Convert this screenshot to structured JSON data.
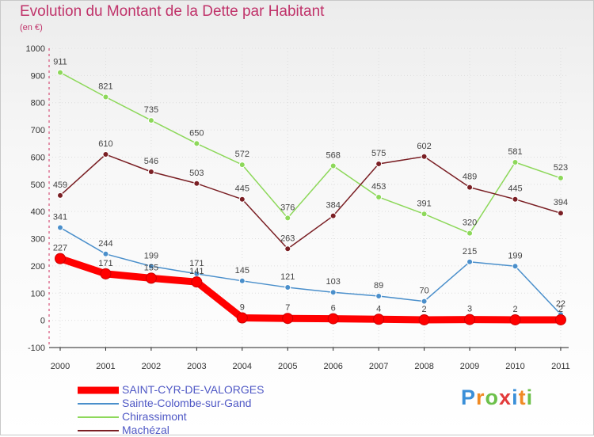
{
  "title": "Evolution du Montant de la Dette par Habitant",
  "subtitle": "(en €)",
  "brand": {
    "text": "Proxiti",
    "letters": [
      {
        "ch": "P",
        "color": "#3a8fd8"
      },
      {
        "ch": "r",
        "color": "#f08a24"
      },
      {
        "ch": "o",
        "color": "#6cc04a"
      },
      {
        "ch": "x",
        "color": "#e23b3b"
      },
      {
        "ch": "i",
        "color": "#3a8fd8"
      },
      {
        "ch": "t",
        "color": "#f08a24"
      },
      {
        "ch": "i",
        "color": "#6cc04a"
      }
    ]
  },
  "chart_data": {
    "type": "line",
    "title": "Evolution du Montant de la Dette par Habitant",
    "ylabel": "(en €)",
    "xlabel": "",
    "categories": [
      "2000",
      "2001",
      "2002",
      "2003",
      "2004",
      "2005",
      "2006",
      "2007",
      "2008",
      "2009",
      "2010",
      "2011"
    ],
    "ylim": [
      -100,
      1000
    ],
    "yticks": [
      -100,
      0,
      100,
      200,
      300,
      400,
      500,
      600,
      700,
      800,
      900,
      1000
    ],
    "legend_position": "bottom-left",
    "series": [
      {
        "name": "SAINT-CYR-DE-VALORGES",
        "color": "#ff0000",
        "thick": true,
        "values": [
          227,
          171,
          155,
          141,
          9,
          7,
          6,
          4,
          2,
          3,
          2,
          2
        ],
        "labels": [
          "227",
          "171",
          "155",
          "141",
          "9",
          "7",
          "6",
          "4",
          "2",
          "3",
          "2",
          "2"
        ]
      },
      {
        "name": "Sainte-Colombe-sur-Gand",
        "color": "#4a8fcb",
        "thick": false,
        "values": [
          341,
          244,
          199,
          171,
          145,
          121,
          103,
          89,
          70,
          215,
          199,
          22
        ],
        "labels": [
          "341",
          "244",
          "199",
          "171",
          "145",
          "121",
          "103",
          "89",
          "70",
          "215",
          "199",
          "22"
        ]
      },
      {
        "name": "Chirassimont",
        "color": "#8dd85a",
        "thick": false,
        "values": [
          911,
          821,
          735,
          650,
          572,
          376,
          568,
          453,
          391,
          320,
          581,
          523
        ],
        "labels": [
          "911",
          "821",
          "735",
          "650",
          "572",
          "376",
          "568",
          "453",
          "391",
          "320",
          "581",
          "523"
        ]
      },
      {
        "name": "Machézal",
        "color": "#7a1f24",
        "thick": false,
        "values": [
          459,
          610,
          546,
          503,
          445,
          263,
          384,
          575,
          602,
          489,
          445,
          394
        ],
        "labels": [
          "459",
          "610",
          "546",
          "503",
          "445",
          "263",
          "384",
          "575",
          "602",
          "489",
          "445",
          "394"
        ]
      }
    ]
  }
}
